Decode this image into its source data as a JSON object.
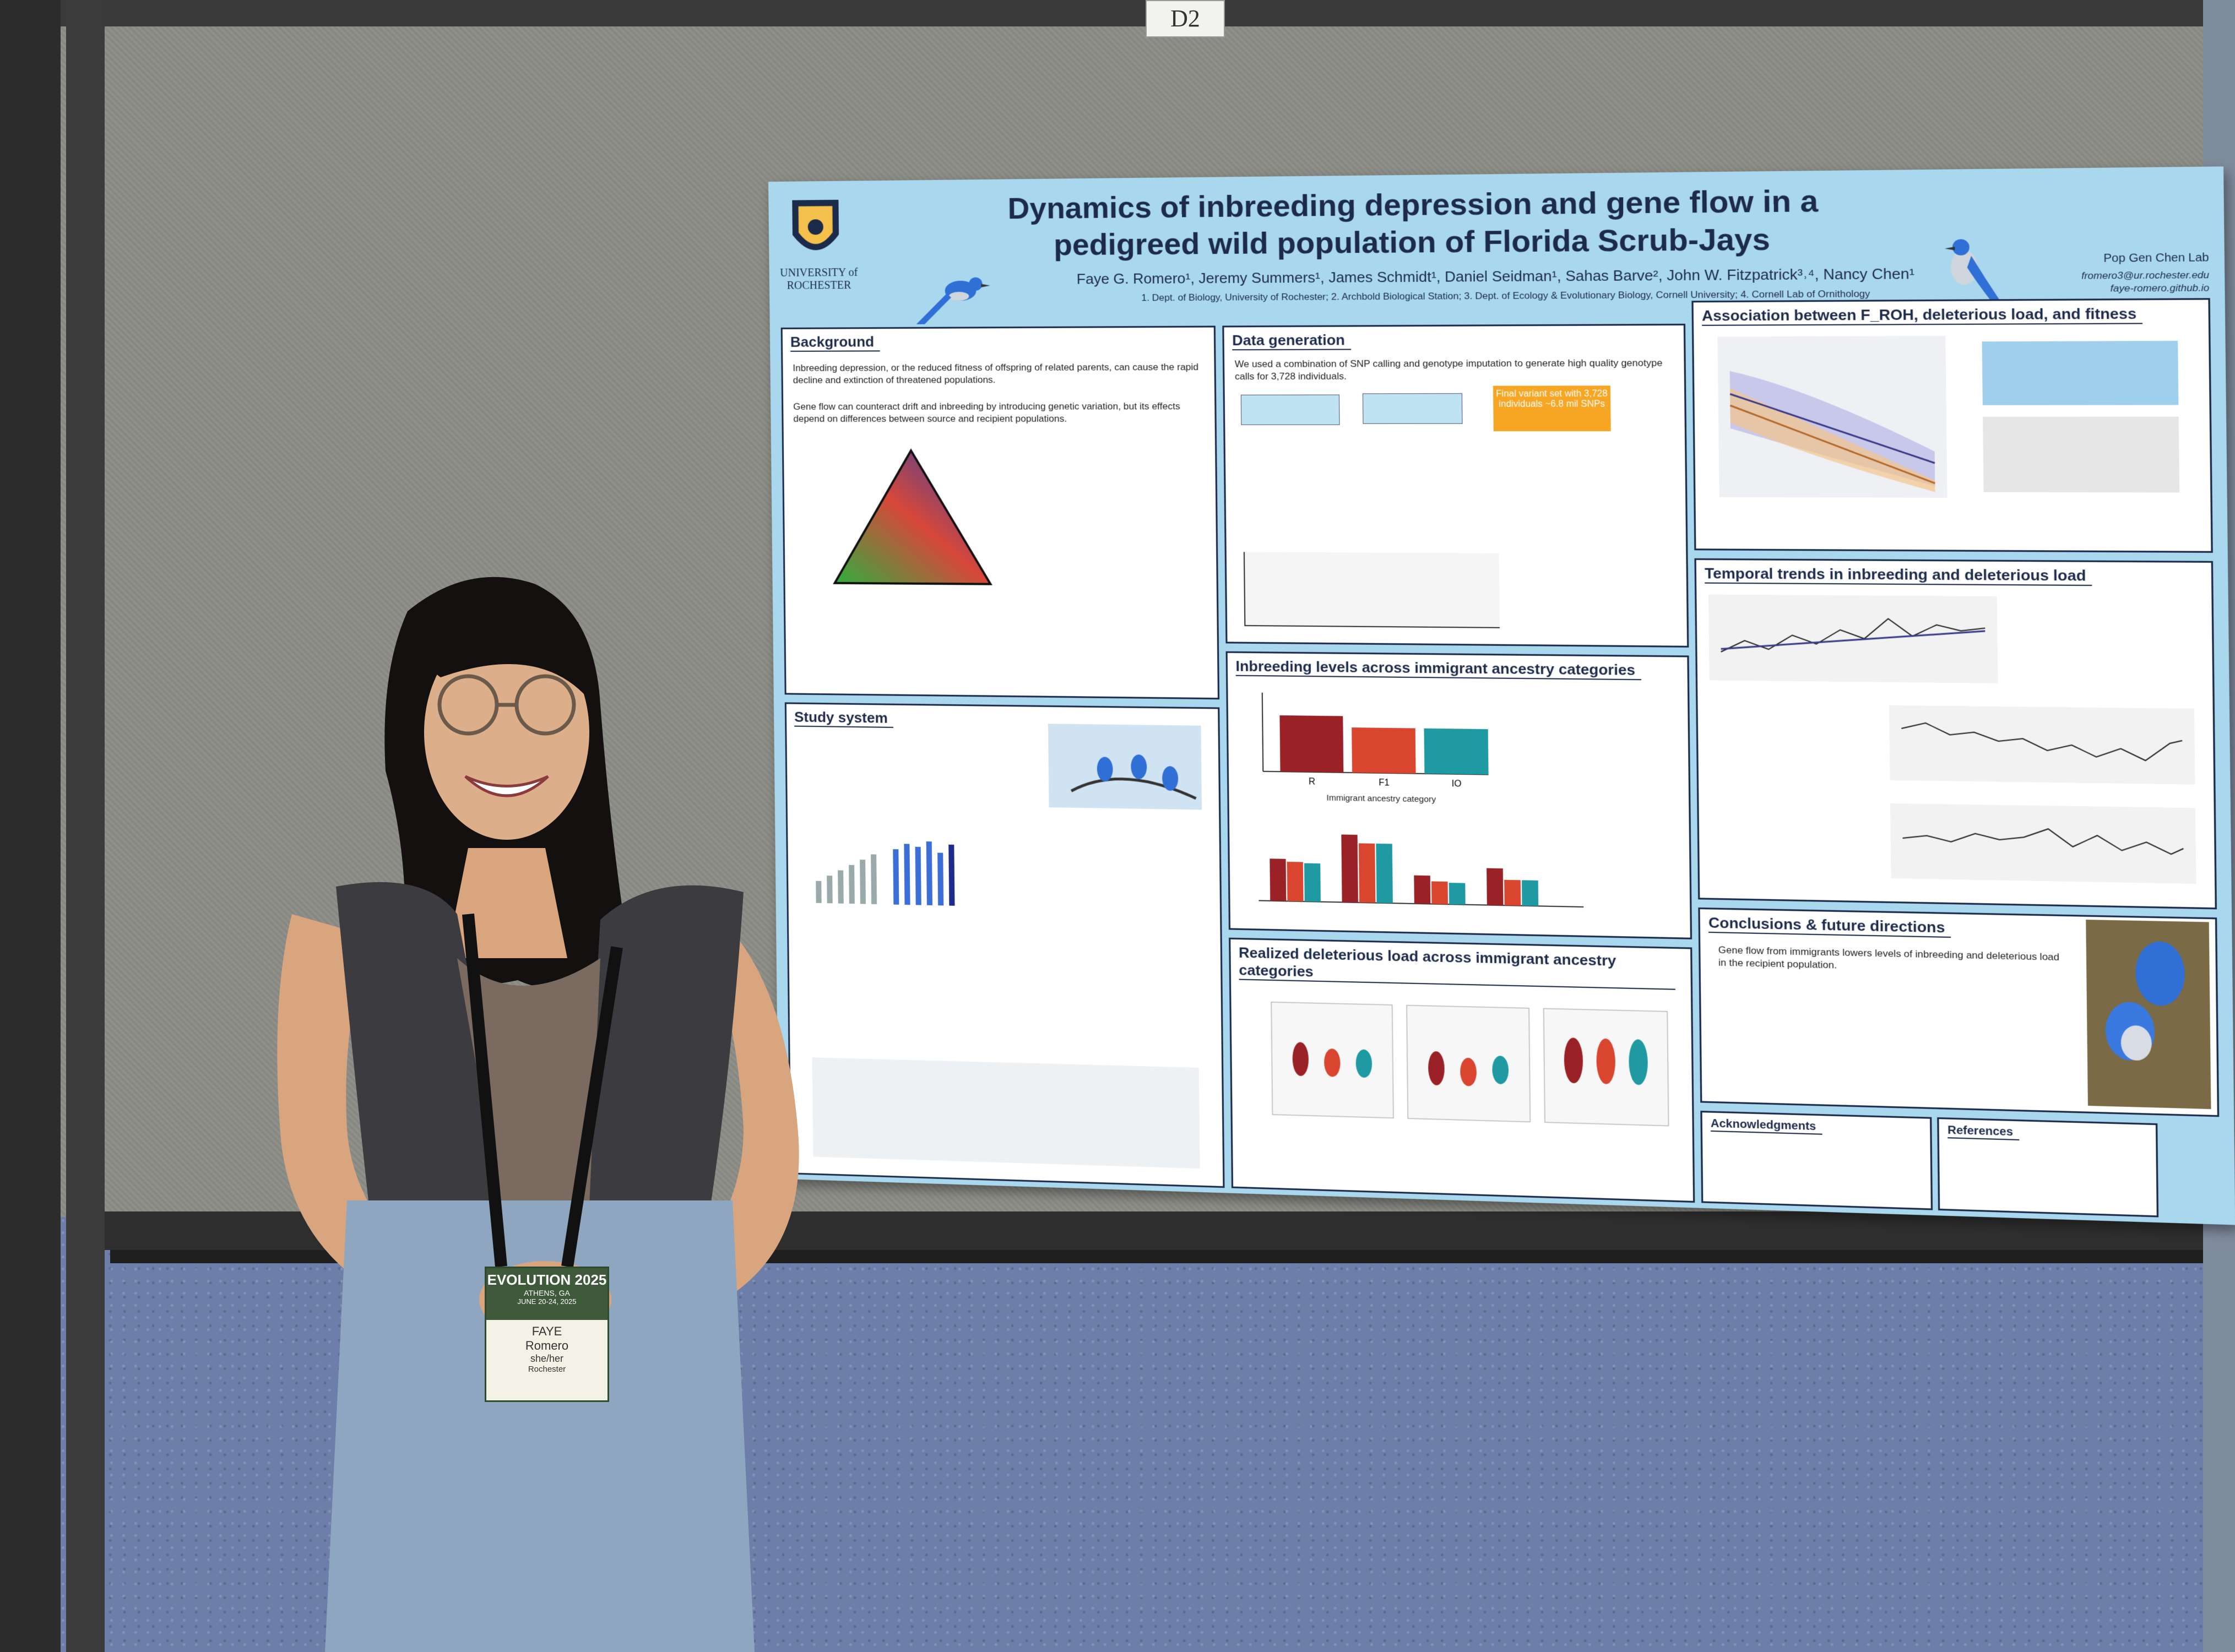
{
  "booth_tag": "D2",
  "poster": {
    "title": "Dynamics of inbreeding depression and gene flow in a pedigreed wild population of Florida Scrub-Jays",
    "authors": "Faye G. Romero¹, Jeremy Summers¹, James Schmidt¹, Daniel Seidman¹, Sahas Barve², John W. Fitzpatrick³˒⁴, Nancy Chen¹",
    "affiliations": "1. Dept. of Biology, University of Rochester; 2. Archbold Biological Station; 3. Dept. of Ecology & Evolutionary Biology, Cornell University; 4. Cornell Lab of Ornithology",
    "university": "UNIVERSITY of ROCHESTER",
    "lab": "Pop Gen Chen Lab",
    "contact_email": "fromero3@ur.rochester.edu",
    "contact_web": "faye-romero.github.io",
    "sections": {
      "background": "Background",
      "study_system": "Study system",
      "data_generation": "Data generation",
      "inbreeding_levels": "Inbreeding levels across immigrant ancestry categories",
      "realized_load": "Realized deleterious load across immigrant ancestry categories",
      "association": "Association between F_ROH, deleterious load, and fitness",
      "temporal": "Temporal trends in inbreeding and deleterious load",
      "conclusions": "Conclusions & future directions",
      "acknowledgments": "Acknowledgments",
      "references": "References"
    },
    "background_text": "Inbreeding depression, or the reduced fitness of offspring of related parents, can cause the rapid decline and extinction of threatened populations.",
    "gene_flow_text": "Gene flow can counteract drift and inbreeding by introducing genetic variation, but its effects depend on differences between source and recipient populations.",
    "data_gen_text": "We used a combination of SNP calling and genotype imputation to generate high quality genotype calls for 3,728 individuals.",
    "final_variant_set": "Final variant set with 3,728 individuals ~6.8 mil SNPs",
    "conclusions_text": "Gene flow from immigrants lowers levels of inbreeding and deleterious load in the recipient population.",
    "bar_categories": [
      "R",
      "F1",
      "IO"
    ],
    "bar_axis_label": "Immigrant ancestry category"
  },
  "badge": {
    "event": "EVOLUTION 2025",
    "location": "ATHENS, GA",
    "dates": "JUNE 20-24, 2025",
    "first_name": "FAYE",
    "last_name": "Romero",
    "pronouns": "she/her",
    "org": "Rochester"
  },
  "colors": {
    "poster_bg": "#a9d8ee",
    "navy": "#1d2b4a",
    "bar_R": "#9a2226",
    "bar_F1": "#d9452f",
    "bar_IO": "#1f9aa3",
    "final_box": "#f6a623"
  }
}
